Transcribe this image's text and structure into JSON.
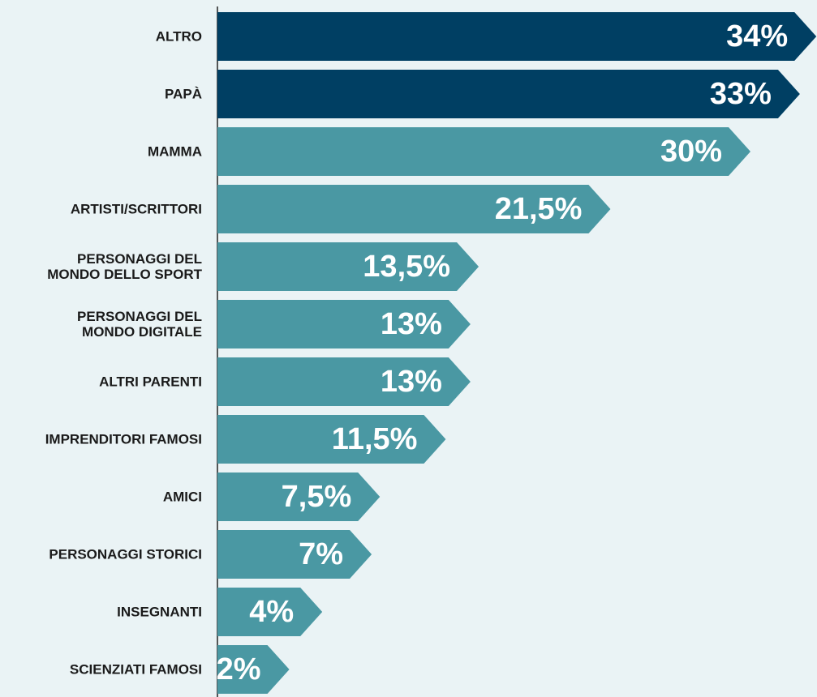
{
  "chart_data": {
    "type": "barh",
    "categories": [
      "ALTRO",
      "PAPÀ",
      "MAMMA",
      "ARTISTI/SCRITTORI",
      "PERSONAGGI DEL\nMONDO DELLO SPORT",
      "PERSONAGGI DEL\nMONDO DIGITALE",
      "ALTRI PARENTI",
      "IMPRENDITORI FAMOSI",
      "AMICI",
      "PERSONAGGI STORICI",
      "INSEGNANTI",
      "SCIENZIATI FAMOSI"
    ],
    "values": [
      34,
      33,
      30,
      21.5,
      13.5,
      13,
      13,
      11.5,
      7.5,
      7,
      4,
      2
    ],
    "value_labels": [
      "34%",
      "33%",
      "30%",
      "21,5%",
      "13,5%",
      "13%",
      "13%",
      "11,5%",
      "7,5%",
      "7%",
      "4%",
      "2%"
    ],
    "colors": [
      "#003f63",
      "#003f63",
      "#4a98a3",
      "#4a98a3",
      "#4a98a3",
      "#4a98a3",
      "#4a98a3",
      "#4a98a3",
      "#4a98a3",
      "#4a98a3",
      "#4a98a3",
      "#4a98a3"
    ]
  }
}
